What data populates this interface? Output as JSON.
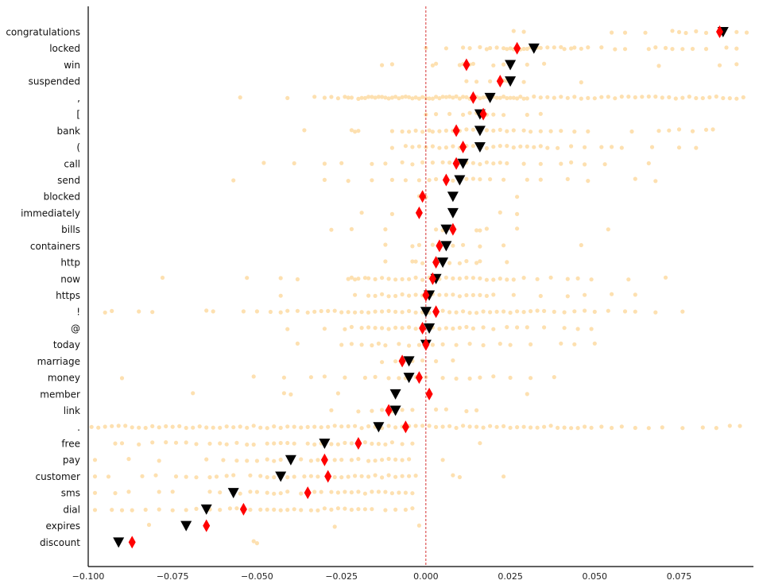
{
  "chart_data": {
    "type": "scatter",
    "title": "",
    "xlabel": "",
    "ylabel": "",
    "xlim": [
      -0.1,
      0.097
    ],
    "x_ticks": [
      -0.1,
      -0.075,
      -0.05,
      -0.025,
      0.0,
      0.025,
      0.05,
      0.075
    ],
    "x_tick_labels": [
      "−0.100",
      "−0.075",
      "−0.050",
      "−0.025",
      "0.000",
      "0.025",
      "0.050",
      "0.075"
    ],
    "reference_line": {
      "x": 0.0,
      "style": "dashed",
      "color": "#cc0000"
    },
    "grid": false,
    "legend": "none",
    "colors": {
      "points": "#fde0b0",
      "diamond": "#ff0000",
      "triangle": "#000000"
    },
    "markers": {
      "diamond": "red-diamond",
      "triangle": "black-triangle-down"
    },
    "categories": [
      {
        "label": "congratulations",
        "diamond": 0.087,
        "triangle": 0.088,
        "points": [
          0.026,
          0.029,
          0.055,
          0.059,
          0.065,
          0.073,
          0.075,
          0.077,
          0.08,
          0.083,
          0.092,
          0.095
        ]
      },
      {
        "label": "locked",
        "diamond": 0.027,
        "triangle": 0.032,
        "points": [
          0.0,
          0.006,
          0.011,
          0.013,
          0.016,
          0.018,
          0.019,
          0.021,
          0.023,
          0.024,
          0.025,
          0.026,
          0.027,
          0.028,
          0.029,
          0.03,
          0.031,
          0.033,
          0.034,
          0.036,
          0.038,
          0.04,
          0.041,
          0.043,
          0.044,
          0.046,
          0.048,
          0.052,
          0.056,
          0.059,
          0.066,
          0.068,
          0.071,
          0.073,
          0.076,
          0.079,
          0.083,
          0.089,
          0.092
        ]
      },
      {
        "label": "win",
        "diamond": 0.012,
        "triangle": 0.025,
        "points": [
          -0.013,
          -0.01,
          0.002,
          0.003,
          0.01,
          0.011,
          0.013,
          0.014,
          0.02,
          0.023,
          0.03,
          0.035,
          0.069,
          0.087,
          0.092
        ]
      },
      {
        "label": "suspended",
        "diamond": 0.022,
        "triangle": 0.025,
        "points": [
          0.012,
          0.015,
          0.019,
          0.023,
          0.024,
          0.029,
          0.046
        ]
      },
      {
        "label": ",",
        "diamond": 0.014,
        "triangle": 0.019,
        "points": [
          -0.055,
          -0.041,
          -0.033,
          -0.03,
          -0.028,
          -0.026,
          -0.024,
          -0.023,
          -0.022,
          -0.02,
          -0.019,
          -0.018,
          -0.017,
          -0.016,
          -0.015,
          -0.014,
          -0.013,
          -0.012,
          -0.011,
          -0.01,
          -0.009,
          -0.008,
          -0.007,
          -0.006,
          -0.005,
          -0.004,
          -0.003,
          -0.002,
          -0.001,
          0.0,
          0.001,
          0.002,
          0.003,
          0.004,
          0.005,
          0.006,
          0.007,
          0.008,
          0.009,
          0.01,
          0.011,
          0.012,
          0.013,
          0.015,
          0.016,
          0.017,
          0.018,
          0.02,
          0.021,
          0.022,
          0.023,
          0.024,
          0.025,
          0.026,
          0.027,
          0.028,
          0.029,
          0.03,
          0.032,
          0.034,
          0.036,
          0.038,
          0.04,
          0.042,
          0.044,
          0.046,
          0.048,
          0.05,
          0.052,
          0.054,
          0.056,
          0.058,
          0.06,
          0.062,
          0.064,
          0.066,
          0.068,
          0.07,
          0.072,
          0.074,
          0.076,
          0.078,
          0.08,
          0.082,
          0.084,
          0.086,
          0.088,
          0.09,
          0.092,
          0.094
        ]
      },
      {
        "label": "[",
        "diamond": 0.017,
        "triangle": 0.016,
        "points": [
          0.0,
          0.003,
          0.007,
          0.011,
          0.013,
          0.015,
          0.018,
          0.02,
          0.023,
          0.03,
          0.034
        ]
      },
      {
        "label": "bank",
        "diamond": 0.009,
        "triangle": 0.016,
        "points": [
          -0.036,
          -0.022,
          -0.021,
          -0.02,
          -0.01,
          -0.007,
          -0.005,
          -0.003,
          -0.001,
          0.001,
          0.002,
          0.004,
          0.006,
          0.008,
          0.01,
          0.012,
          0.014,
          0.018,
          0.02,
          0.022,
          0.024,
          0.026,
          0.029,
          0.031,
          0.034,
          0.037,
          0.04,
          0.044,
          0.048,
          0.061,
          0.069,
          0.072,
          0.075,
          0.079,
          0.083,
          0.085
        ]
      },
      {
        "label": "(",
        "diamond": 0.011,
        "triangle": 0.016,
        "points": [
          -0.01,
          -0.006,
          -0.004,
          -0.002,
          0.0,
          0.002,
          0.004,
          0.006,
          0.008,
          0.01,
          0.012,
          0.014,
          0.018,
          0.02,
          0.022,
          0.024,
          0.026,
          0.028,
          0.03,
          0.032,
          0.034,
          0.036,
          0.039,
          0.043,
          0.047,
          0.052,
          0.055,
          0.058,
          0.067,
          0.075,
          0.08
        ]
      },
      {
        "label": "call",
        "diamond": 0.009,
        "triangle": 0.011,
        "points": [
          -0.048,
          -0.039,
          -0.03,
          -0.025,
          -0.016,
          -0.012,
          -0.007,
          -0.004,
          -0.001,
          0.002,
          0.005,
          0.007,
          0.01,
          0.012,
          0.014,
          0.016,
          0.018,
          0.02,
          0.022,
          0.024,
          0.029,
          0.034,
          0.04,
          0.043,
          0.047,
          0.053,
          0.066
        ]
      },
      {
        "label": "send",
        "diamond": 0.006,
        "triangle": 0.01,
        "points": [
          -0.057,
          -0.03,
          -0.023,
          -0.016,
          -0.01,
          -0.006,
          -0.002,
          0.001,
          0.003,
          0.008,
          0.012,
          0.014,
          0.016,
          0.019,
          0.023,
          0.03,
          0.034,
          0.042,
          0.048,
          0.062,
          0.068
        ]
      },
      {
        "label": "blocked",
        "diamond": -0.001,
        "triangle": 0.008,
        "points": [
          -0.002,
          0.0,
          0.027
        ]
      },
      {
        "label": "immediately",
        "diamond": -0.002,
        "triangle": 0.008,
        "points": [
          -0.019,
          -0.01,
          0.022,
          0.027
        ]
      },
      {
        "label": "bills",
        "diamond": 0.008,
        "triangle": 0.006,
        "points": [
          -0.028,
          -0.022,
          -0.012,
          0.003,
          0.005,
          0.015,
          0.016,
          0.018,
          0.027,
          0.054
        ]
      },
      {
        "label": "containers",
        "diamond": 0.004,
        "triangle": 0.006,
        "points": [
          -0.012,
          -0.004,
          -0.002,
          0.002,
          0.008,
          0.011,
          0.016,
          0.023,
          0.046
        ]
      },
      {
        "label": "http",
        "diamond": 0.003,
        "triangle": 0.005,
        "points": [
          -0.012,
          -0.004,
          -0.003,
          -0.001,
          0.007,
          0.01,
          0.012,
          0.015,
          0.016,
          0.024
        ]
      },
      {
        "label": "now",
        "diamond": 0.002,
        "triangle": 0.003,
        "points": [
          -0.078,
          -0.053,
          -0.043,
          -0.038,
          -0.023,
          -0.022,
          -0.021,
          -0.02,
          -0.018,
          -0.017,
          -0.015,
          -0.013,
          -0.011,
          -0.009,
          -0.007,
          -0.005,
          -0.003,
          -0.001,
          0.001,
          0.004,
          0.006,
          0.008,
          0.01,
          0.012,
          0.014,
          0.016,
          0.018,
          0.02,
          0.022,
          0.024,
          0.026,
          0.029,
          0.033,
          0.037,
          0.042,
          0.045,
          0.049,
          0.06,
          0.071
        ]
      },
      {
        "label": "https",
        "diamond": 0.0,
        "triangle": 0.001,
        "points": [
          -0.043,
          -0.021,
          -0.017,
          -0.015,
          -0.013,
          -0.011,
          -0.009,
          -0.007,
          -0.005,
          -0.003,
          -0.001,
          0.002,
          0.004,
          0.006,
          0.008,
          0.01,
          0.012,
          0.014,
          0.016,
          0.018,
          0.02,
          0.026,
          0.034,
          0.042,
          0.047,
          0.055,
          0.062
        ]
      },
      {
        "label": "!",
        "diamond": 0.003,
        "triangle": 0.0,
        "points": [
          -0.095,
          -0.093,
          -0.085,
          -0.081,
          -0.065,
          -0.063,
          -0.054,
          -0.05,
          -0.046,
          -0.043,
          -0.041,
          -0.038,
          -0.035,
          -0.033,
          -0.031,
          -0.029,
          -0.027,
          -0.025,
          -0.023,
          -0.021,
          -0.019,
          -0.017,
          -0.015,
          -0.013,
          -0.011,
          -0.009,
          -0.007,
          -0.005,
          -0.003,
          -0.001,
          0.001,
          0.005,
          0.007,
          0.009,
          0.011,
          0.013,
          0.015,
          0.017,
          0.019,
          0.021,
          0.023,
          0.025,
          0.027,
          0.029,
          0.031,
          0.033,
          0.035,
          0.038,
          0.041,
          0.044,
          0.047,
          0.05,
          0.054,
          0.059,
          0.062,
          0.068,
          0.076
        ]
      },
      {
        "label": "@",
        "diamond": -0.001,
        "triangle": 0.001,
        "points": [
          -0.041,
          -0.03,
          -0.024,
          -0.022,
          -0.019,
          -0.017,
          -0.015,
          -0.013,
          -0.011,
          -0.009,
          -0.007,
          -0.005,
          -0.003,
          0.002,
          0.004,
          0.006,
          0.008,
          0.01,
          0.012,
          0.014,
          0.017,
          0.02,
          0.024,
          0.027,
          0.03,
          0.035,
          0.041,
          0.045,
          0.049
        ]
      },
      {
        "label": "today",
        "diamond": 0.0,
        "triangle": 0.0,
        "points": [
          -0.038,
          -0.025,
          -0.022,
          -0.019,
          -0.016,
          -0.014,
          -0.012,
          -0.008,
          -0.005,
          -0.002,
          0.002,
          0.005,
          0.009,
          0.013,
          0.017,
          0.022,
          0.025,
          0.031,
          0.04,
          0.044,
          0.05
        ]
      },
      {
        "label": "marriage",
        "diamond": -0.007,
        "triangle": -0.005,
        "points": [
          -0.013,
          -0.009,
          -0.007,
          -0.004,
          -0.001,
          0.003,
          0.008
        ]
      },
      {
        "label": "money",
        "diamond": -0.002,
        "triangle": -0.005,
        "points": [
          -0.09,
          -0.051,
          -0.042,
          -0.034,
          -0.03,
          -0.024,
          -0.018,
          -0.015,
          -0.011,
          -0.008,
          -0.006,
          -0.003,
          0.0,
          0.005,
          0.009,
          0.013,
          0.016,
          0.02,
          0.025,
          0.031,
          0.038
        ]
      },
      {
        "label": "member",
        "diamond": 0.001,
        "triangle": -0.009,
        "points": [
          -0.069,
          -0.042,
          -0.04,
          -0.026,
          0.03
        ]
      },
      {
        "label": "link",
        "diamond": -0.011,
        "triangle": -0.009,
        "points": [
          -0.028,
          -0.02,
          -0.016,
          -0.013,
          -0.01,
          -0.007,
          -0.004,
          0.003,
          0.006,
          0.012,
          0.015
        ]
      },
      {
        "label": ".",
        "diamond": -0.006,
        "triangle": -0.014,
        "points": [
          -0.099,
          -0.097,
          -0.095,
          -0.093,
          -0.091,
          -0.089,
          -0.087,
          -0.085,
          -0.083,
          -0.081,
          -0.079,
          -0.077,
          -0.075,
          -0.073,
          -0.071,
          -0.069,
          -0.067,
          -0.065,
          -0.063,
          -0.061,
          -0.059,
          -0.057,
          -0.055,
          -0.053,
          -0.051,
          -0.049,
          -0.047,
          -0.045,
          -0.043,
          -0.041,
          -0.039,
          -0.037,
          -0.035,
          -0.033,
          -0.031,
          -0.029,
          -0.027,
          -0.025,
          -0.023,
          -0.021,
          -0.019,
          -0.017,
          -0.015,
          -0.013,
          -0.011,
          -0.009,
          -0.007,
          -0.005,
          -0.003,
          -0.001,
          0.001,
          0.003,
          0.005,
          0.007,
          0.009,
          0.011,
          0.013,
          0.015,
          0.017,
          0.019,
          0.021,
          0.023,
          0.025,
          0.027,
          0.029,
          0.031,
          0.033,
          0.035,
          0.037,
          0.039,
          0.041,
          0.043,
          0.045,
          0.047,
          0.049,
          0.052,
          0.055,
          0.058,
          0.062,
          0.066,
          0.07,
          0.076,
          0.082,
          0.086,
          0.09,
          0.093
        ]
      },
      {
        "label": "free",
        "diamond": -0.02,
        "triangle": -0.03,
        "points": [
          -0.092,
          -0.09,
          -0.085,
          -0.081,
          -0.077,
          -0.074,
          -0.071,
          -0.068,
          -0.064,
          -0.061,
          -0.059,
          -0.056,
          -0.053,
          -0.051,
          -0.047,
          -0.045,
          -0.043,
          -0.041,
          -0.039,
          -0.035,
          -0.033,
          -0.031,
          -0.028,
          -0.026,
          -0.024,
          -0.022,
          -0.018,
          -0.016,
          -0.014,
          -0.012,
          -0.01,
          -0.007,
          -0.004,
          0.016
        ]
      },
      {
        "label": "pay",
        "diamond": -0.03,
        "triangle": -0.04,
        "points": [
          -0.098,
          -0.088,
          -0.079,
          -0.065,
          -0.06,
          -0.056,
          -0.053,
          -0.05,
          -0.047,
          -0.045,
          -0.043,
          -0.037,
          -0.034,
          -0.032,
          -0.027,
          -0.025,
          -0.022,
          -0.02,
          -0.017,
          -0.015,
          -0.013,
          -0.011,
          -0.009,
          -0.007,
          -0.005,
          0.005
        ]
      },
      {
        "label": "customer",
        "diamond": -0.029,
        "triangle": -0.043,
        "points": [
          -0.098,
          -0.094,
          -0.084,
          -0.08,
          -0.074,
          -0.071,
          -0.068,
          -0.064,
          -0.062,
          -0.059,
          -0.057,
          -0.052,
          -0.049,
          -0.047,
          -0.045,
          -0.041,
          -0.039,
          -0.036,
          -0.034,
          -0.032,
          -0.027,
          -0.025,
          -0.023,
          -0.021,
          -0.019,
          -0.017,
          -0.015,
          -0.013,
          -0.011,
          -0.009,
          -0.007,
          -0.005,
          -0.003,
          0.008,
          0.01,
          0.023
        ]
      },
      {
        "label": "sms",
        "diamond": -0.035,
        "triangle": -0.057,
        "points": [
          -0.098,
          -0.092,
          -0.088,
          -0.079,
          -0.075,
          -0.064,
          -0.061,
          -0.055,
          -0.052,
          -0.05,
          -0.047,
          -0.045,
          -0.043,
          -0.041,
          -0.037,
          -0.033,
          -0.031,
          -0.028,
          -0.026,
          -0.024,
          -0.022,
          -0.02,
          -0.018,
          -0.016,
          -0.014,
          -0.012,
          -0.01,
          -0.008,
          -0.006,
          -0.004
        ]
      },
      {
        "label": "dial",
        "diamond": -0.054,
        "triangle": -0.065,
        "points": [
          -0.098,
          -0.093,
          -0.09,
          -0.087,
          -0.083,
          -0.079,
          -0.075,
          -0.071,
          -0.068,
          -0.064,
          -0.061,
          -0.058,
          -0.056,
          -0.052,
          -0.049,
          -0.047,
          -0.045,
          -0.043,
          -0.041,
          -0.039,
          -0.037,
          -0.034,
          -0.032,
          -0.03,
          -0.028,
          -0.026,
          -0.024,
          -0.022,
          -0.02,
          -0.018,
          -0.016,
          -0.012,
          -0.009,
          -0.006,
          -0.004
        ]
      },
      {
        "label": "expires",
        "diamond": -0.065,
        "triangle": -0.071,
        "points": [
          -0.082,
          -0.027,
          -0.002
        ]
      },
      {
        "label": "discount",
        "diamond": -0.087,
        "triangle": -0.091,
        "points": [
          -0.051,
          -0.05
        ]
      }
    ]
  }
}
